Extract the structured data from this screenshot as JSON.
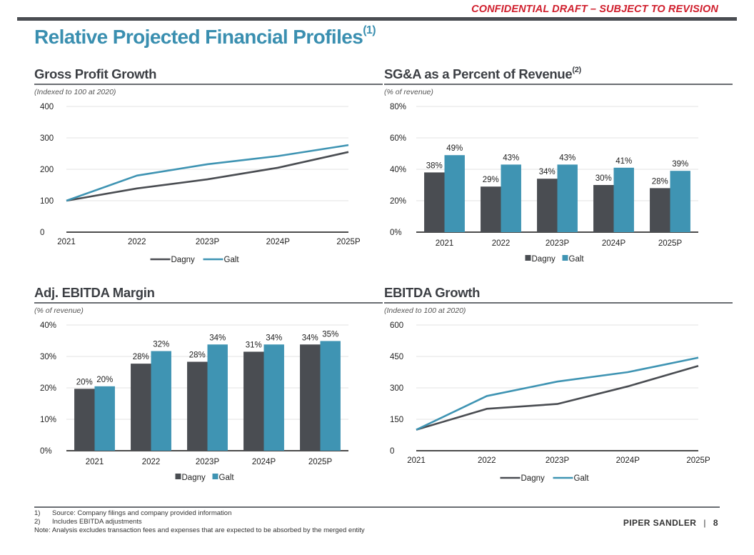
{
  "header": {
    "confidential": "CONFIDENTIAL DRAFT – SUBJECT TO REVISION",
    "title": "Relative Projected Financial Profiles",
    "title_sup": "(1)"
  },
  "colors": {
    "dagny": "#4a4d52",
    "galt": "#3f94b3",
    "grid": "#e3e3e3",
    "axis": "#111111",
    "title_accent": "#3a8fb0",
    "confidential": "#d0202e"
  },
  "panels": {
    "gross_profit": {
      "title": "Gross Profit Growth",
      "title_sup": "",
      "subtitle": "(Indexed to 100 at 2020)"
    },
    "sga": {
      "title": "SG&A as a Percent of Revenue",
      "title_sup": "(2)",
      "subtitle": "(% of revenue)"
    },
    "ebitda_margin": {
      "title": "Adj. EBITDA Margin",
      "title_sup": "",
      "subtitle": "(% of revenue)"
    },
    "ebitda_growth": {
      "title": "EBITDA Growth",
      "title_sup": "",
      "subtitle": "(Indexed to 100 at 2020)"
    }
  },
  "chart_data": [
    {
      "id": "gross_profit",
      "type": "line",
      "title": "Gross Profit Growth",
      "subtitle": "(Indexed to 100 at 2020)",
      "categories": [
        "2021",
        "2022",
        "2023P",
        "2024P",
        "2025P"
      ],
      "series": [
        {
          "name": "Dagny",
          "values": [
            100,
            139,
            168,
            205,
            255
          ]
        },
        {
          "name": "Galt",
          "values": [
            100,
            180,
            216,
            242,
            277
          ]
        }
      ],
      "ylim": [
        0,
        400
      ],
      "yticks": [
        0,
        100,
        200,
        300,
        400
      ],
      "ytick_labels": [
        "0",
        "100",
        "200",
        "300",
        "400"
      ],
      "grid": true,
      "legend": "bottom"
    },
    {
      "id": "sga",
      "type": "bar",
      "title": "SG&A as a Percent of Revenue",
      "subtitle": "(% of revenue)",
      "categories": [
        "2021",
        "2022",
        "2023P",
        "2024P",
        "2025P"
      ],
      "series": [
        {
          "name": "Dagny",
          "values": [
            38,
            29,
            34,
            30,
            28
          ],
          "labels": [
            "38%",
            "29%",
            "34%",
            "30%",
            "28%"
          ]
        },
        {
          "name": "Galt",
          "values": [
            49,
            43,
            43,
            41,
            39
          ],
          "labels": [
            "49%",
            "43%",
            "43%",
            "41%",
            "39%"
          ]
        }
      ],
      "ylim": [
        0,
        80
      ],
      "yticks": [
        0,
        20,
        40,
        60,
        80
      ],
      "ytick_labels": [
        "0%",
        "20%",
        "40%",
        "60%",
        "80%"
      ],
      "grid": true,
      "legend": "bottom"
    },
    {
      "id": "ebitda_margin",
      "type": "bar",
      "title": "Adj. EBITDA Margin",
      "subtitle": "(% of revenue)",
      "categories": [
        "2021",
        "2022",
        "2023P",
        "2024P",
        "2025P"
      ],
      "series": [
        {
          "name": "Dagny",
          "values": [
            19.7,
            27.7,
            28.3,
            31.5,
            33.8
          ],
          "labels": [
            "20%",
            "28%",
            "28%",
            "31%",
            "34%"
          ]
        },
        {
          "name": "Galt",
          "values": [
            20.5,
            31.7,
            33.8,
            33.8,
            34.9
          ],
          "labels": [
            "20%",
            "32%",
            "34%",
            "34%",
            "35%"
          ]
        }
      ],
      "ylim": [
        0,
        40
      ],
      "yticks": [
        0,
        10,
        20,
        30,
        40
      ],
      "ytick_labels": [
        "0%",
        "10%",
        "20%",
        "30%",
        "40%"
      ],
      "grid": true,
      "legend": "bottom"
    },
    {
      "id": "ebitda_growth",
      "type": "line",
      "title": "EBITDA Growth",
      "subtitle": "(Indexed to 100 at 2020)",
      "categories": [
        "2021",
        "2022",
        "2023P",
        "2024P",
        "2025P"
      ],
      "series": [
        {
          "name": "Dagny",
          "values": [
            100,
            200,
            223,
            307,
            405
          ]
        },
        {
          "name": "Galt",
          "values": [
            100,
            261,
            330,
            375,
            444
          ]
        }
      ],
      "ylim": [
        0,
        600
      ],
      "yticks": [
        0,
        150,
        300,
        450,
        600
      ],
      "ytick_labels": [
        "0",
        "150",
        "300",
        "450",
        "600"
      ],
      "grid": true,
      "legend": "bottom"
    }
  ],
  "footer": {
    "notes": [
      {
        "num": "1)",
        "text": "Source: Company filings and company provided information"
      },
      {
        "num": "2)",
        "text": "Includes EBITDA adjustments"
      }
    ],
    "note": "Note: Analysis excludes transaction fees and expenses that are expected to be absorbed by the merged entity",
    "brand": "PIPER SANDLER",
    "separator": "|",
    "page_number": "8"
  }
}
